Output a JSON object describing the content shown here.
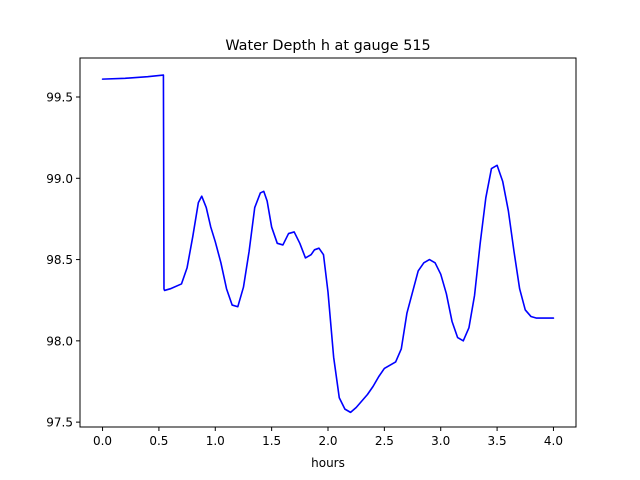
{
  "chart_data": {
    "type": "line",
    "title": "Water Depth h at gauge 515",
    "xlabel": "hours",
    "ylabel": "",
    "xlim": [
      -0.2,
      4.2
    ],
    "ylim": [
      97.47,
      99.74
    ],
    "xticks": [
      0.0,
      0.5,
      1.0,
      1.5,
      2.0,
      2.5,
      3.0,
      3.5,
      4.0
    ],
    "xtick_labels": [
      "0.0",
      "0.5",
      "1.0",
      "1.5",
      "2.0",
      "2.5",
      "3.0",
      "3.5",
      "4.0"
    ],
    "yticks": [
      97.5,
      98.0,
      98.5,
      99.0,
      99.5
    ],
    "ytick_labels": [
      "97.5",
      "98.0",
      "98.5",
      "99.0",
      "99.5"
    ],
    "grid": false,
    "legend": "none",
    "series": [
      {
        "color": "#0000ff",
        "x": [
          0.0,
          0.2,
          0.4,
          0.54,
          0.545,
          0.55,
          0.6,
          0.7,
          0.75,
          0.8,
          0.85,
          0.88,
          0.92,
          0.96,
          1.0,
          1.05,
          1.1,
          1.15,
          1.2,
          1.25,
          1.3,
          1.35,
          1.4,
          1.43,
          1.46,
          1.5,
          1.55,
          1.6,
          1.65,
          1.7,
          1.75,
          1.8,
          1.85,
          1.88,
          1.92,
          1.96,
          2.0,
          2.05,
          2.1,
          2.15,
          2.2,
          2.25,
          2.3,
          2.35,
          2.4,
          2.45,
          2.5,
          2.55,
          2.6,
          2.65,
          2.7,
          2.75,
          2.8,
          2.85,
          2.9,
          2.95,
          3.0,
          3.05,
          3.1,
          3.15,
          3.2,
          3.25,
          3.3,
          3.35,
          3.4,
          3.45,
          3.5,
          3.55,
          3.6,
          3.65,
          3.7,
          3.75,
          3.8,
          3.85,
          3.9,
          3.95,
          4.0
        ],
        "y": [
          99.61,
          99.615,
          99.625,
          99.635,
          98.32,
          98.31,
          98.32,
          98.35,
          98.45,
          98.64,
          98.85,
          98.89,
          98.82,
          98.7,
          98.61,
          98.48,
          98.32,
          98.22,
          98.21,
          98.33,
          98.55,
          98.82,
          98.91,
          98.92,
          98.86,
          98.7,
          98.6,
          98.59,
          98.66,
          98.67,
          98.6,
          98.51,
          98.53,
          98.56,
          98.57,
          98.53,
          98.3,
          97.9,
          97.65,
          97.58,
          97.56,
          97.59,
          97.63,
          97.67,
          97.72,
          97.78,
          97.83,
          97.85,
          97.87,
          97.95,
          98.17,
          98.3,
          98.43,
          98.48,
          98.5,
          98.48,
          98.41,
          98.29,
          98.12,
          98.02,
          98.0,
          98.08,
          98.28,
          98.6,
          98.88,
          99.06,
          99.08,
          98.98,
          98.8,
          98.55,
          98.32,
          98.19,
          98.15,
          98.14,
          98.14,
          98.14,
          98.14
        ]
      }
    ]
  }
}
